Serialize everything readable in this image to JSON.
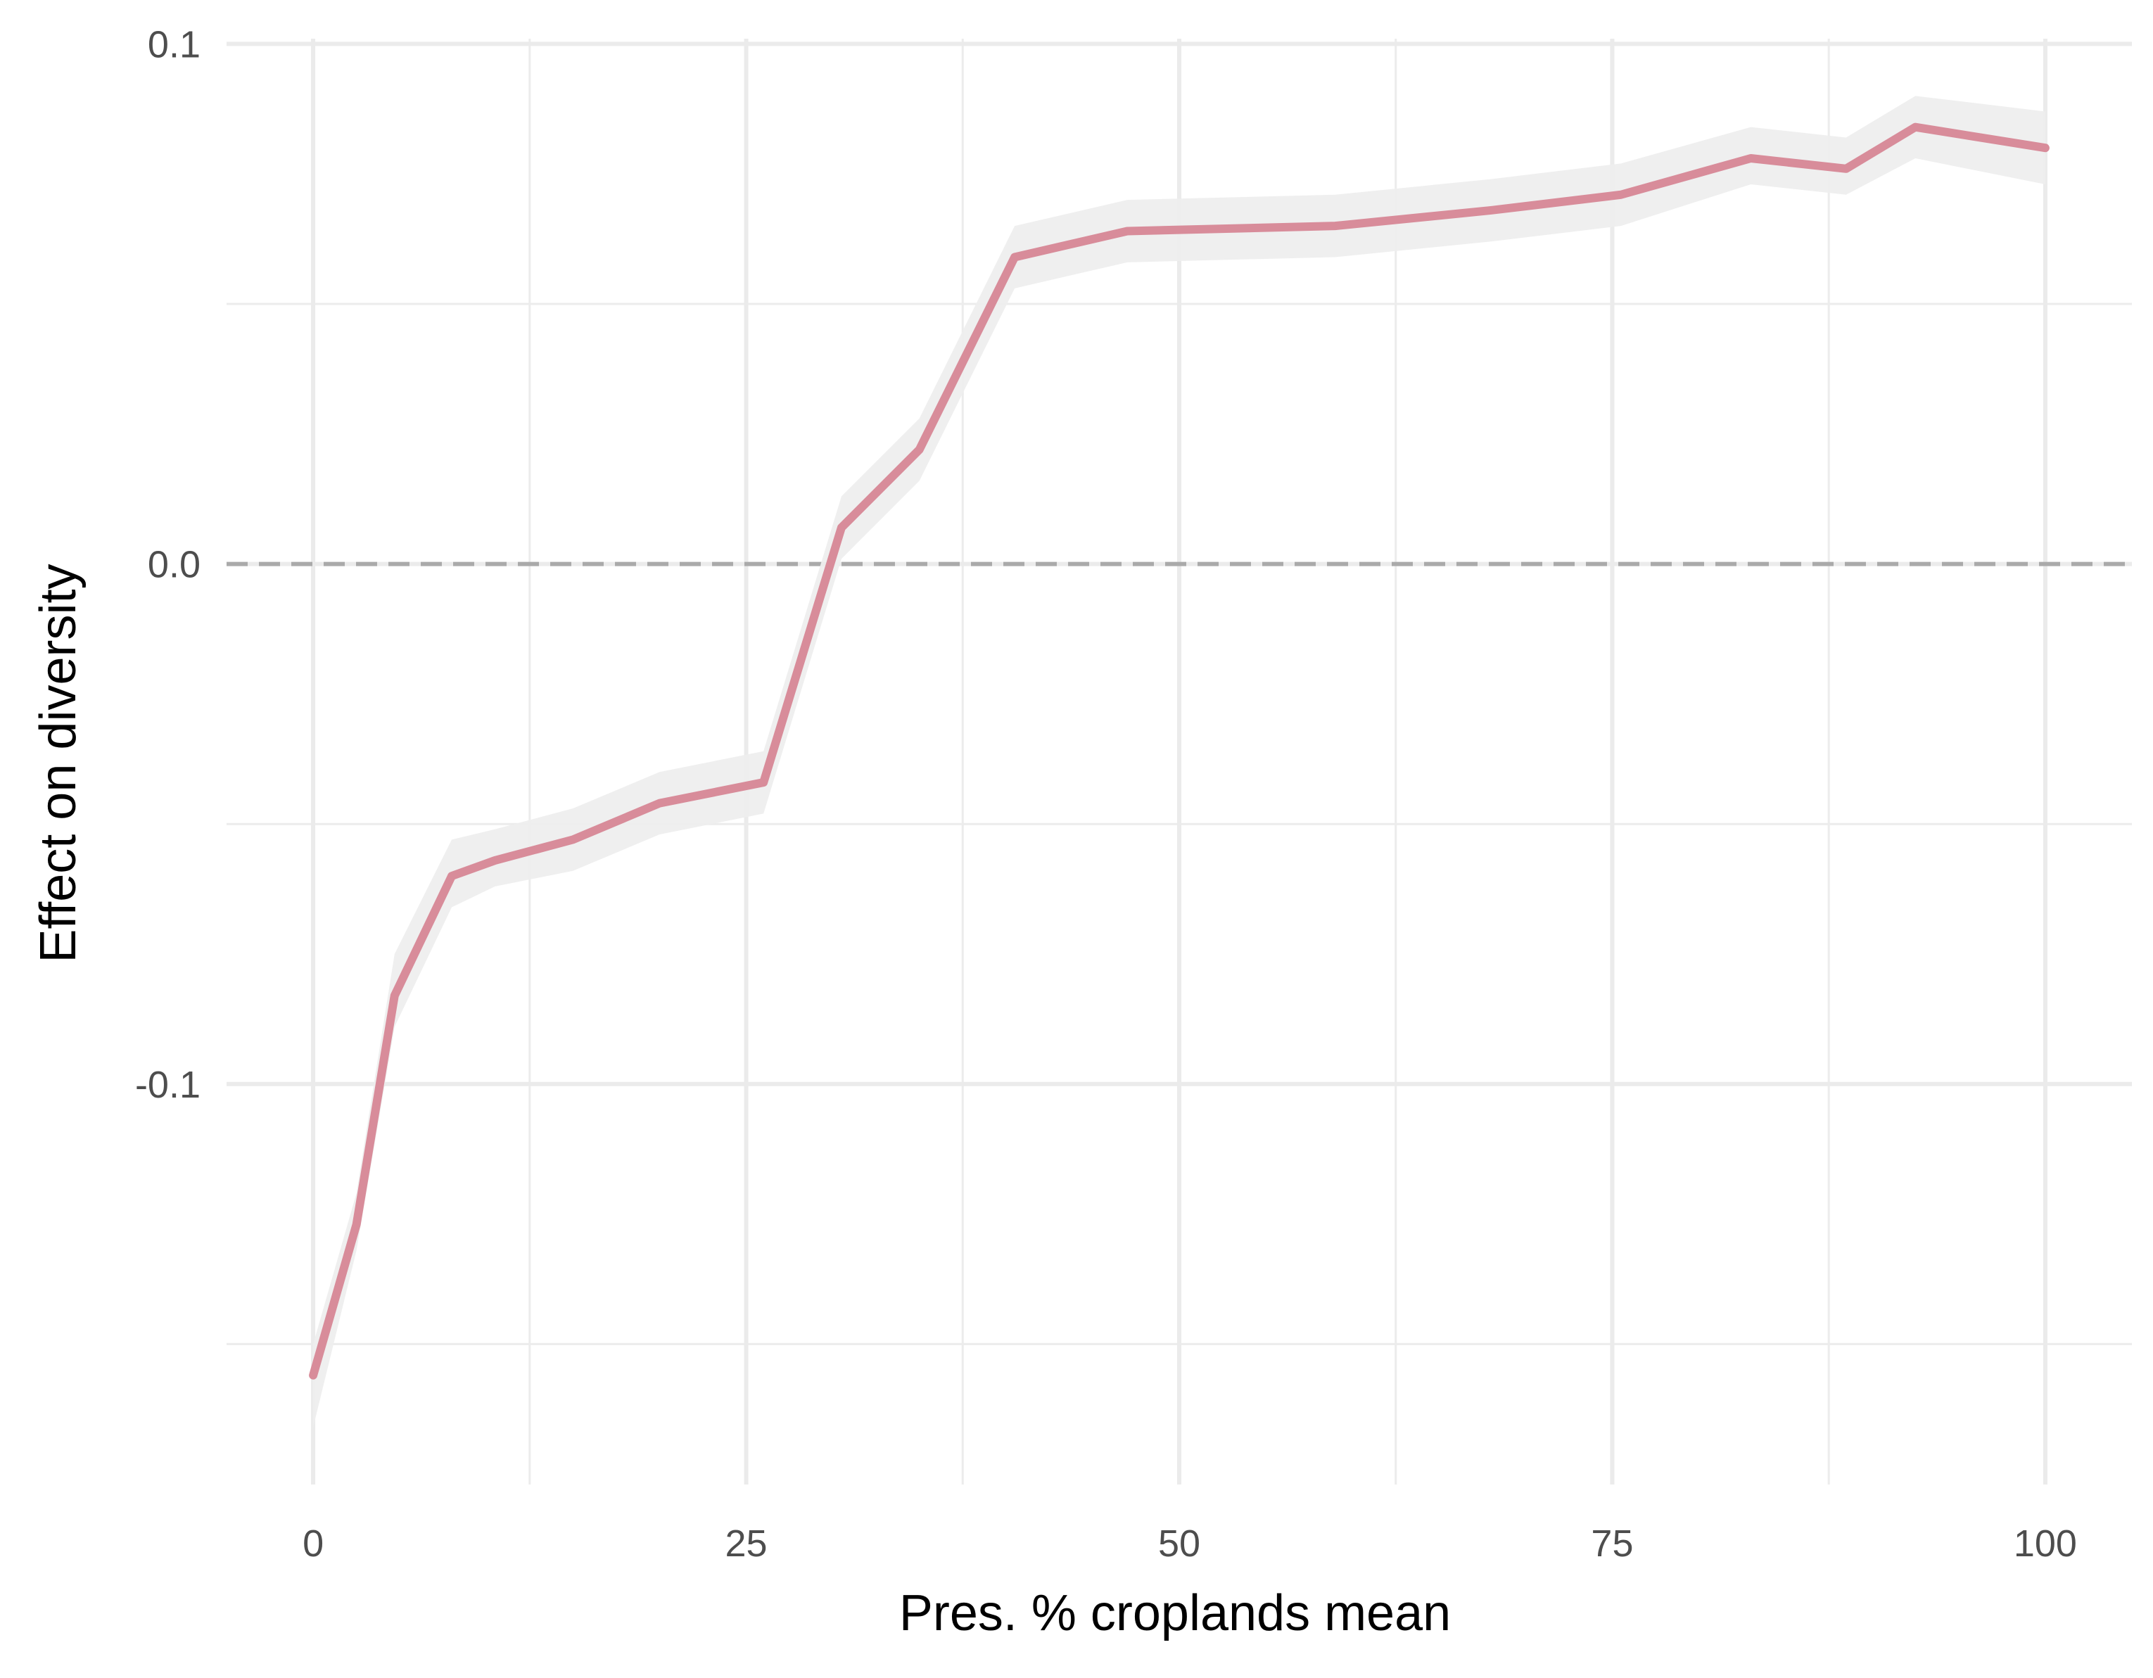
{
  "chart_data": {
    "type": "line",
    "title": "",
    "xlabel": "Pres. % croplands mean",
    "ylabel": "Effect on diversity",
    "xlim": [
      -5,
      105
    ],
    "ylim": [
      -0.177,
      0.101
    ],
    "x_ticks": [
      0,
      25,
      50,
      75,
      100
    ],
    "x_tick_labels": [
      "0",
      "25",
      "50",
      "75",
      "100"
    ],
    "y_ticks": [
      -0.1,
      0.0,
      0.1
    ],
    "y_tick_labels": [
      "-0.1",
      "0.0",
      "0.1"
    ],
    "x_minor_ticks": [
      12.5,
      37.5,
      62.5,
      87.5
    ],
    "y_minor_ticks": [
      -0.15,
      -0.05,
      0.05
    ],
    "grid": true,
    "reference_line": {
      "y": 0,
      "style": "dashed",
      "color": "#aaaaaa"
    },
    "series": [
      {
        "color": "#d88c9a",
        "band_color": "#eeeeee",
        "x": [
          0,
          2.5,
          4.7,
          8,
          10.5,
          15,
          20,
          26,
          30.5,
          35,
          40.5,
          47,
          59,
          68,
          75.5,
          83,
          88.5,
          92.5,
          100
        ],
        "y": [
          -0.156,
          -0.127,
          -0.083,
          -0.06,
          -0.057,
          -0.053,
          -0.046,
          -0.042,
          0.007,
          0.022,
          0.059,
          0.064,
          0.065,
          0.068,
          0.071,
          0.078,
          0.076,
          0.084,
          0.08
        ],
        "lower": [
          -0.166,
          -0.132,
          -0.089,
          -0.066,
          -0.062,
          -0.059,
          -0.052,
          -0.048,
          0.001,
          0.016,
          0.053,
          0.058,
          0.059,
          0.062,
          0.065,
          0.073,
          0.071,
          0.078,
          0.073
        ],
        "upper": [
          -0.15,
          -0.121,
          -0.075,
          -0.053,
          -0.051,
          -0.047,
          -0.04,
          -0.036,
          0.013,
          0.028,
          0.065,
          0.07,
          0.071,
          0.074,
          0.077,
          0.084,
          0.082,
          0.09,
          0.087
        ]
      }
    ]
  }
}
